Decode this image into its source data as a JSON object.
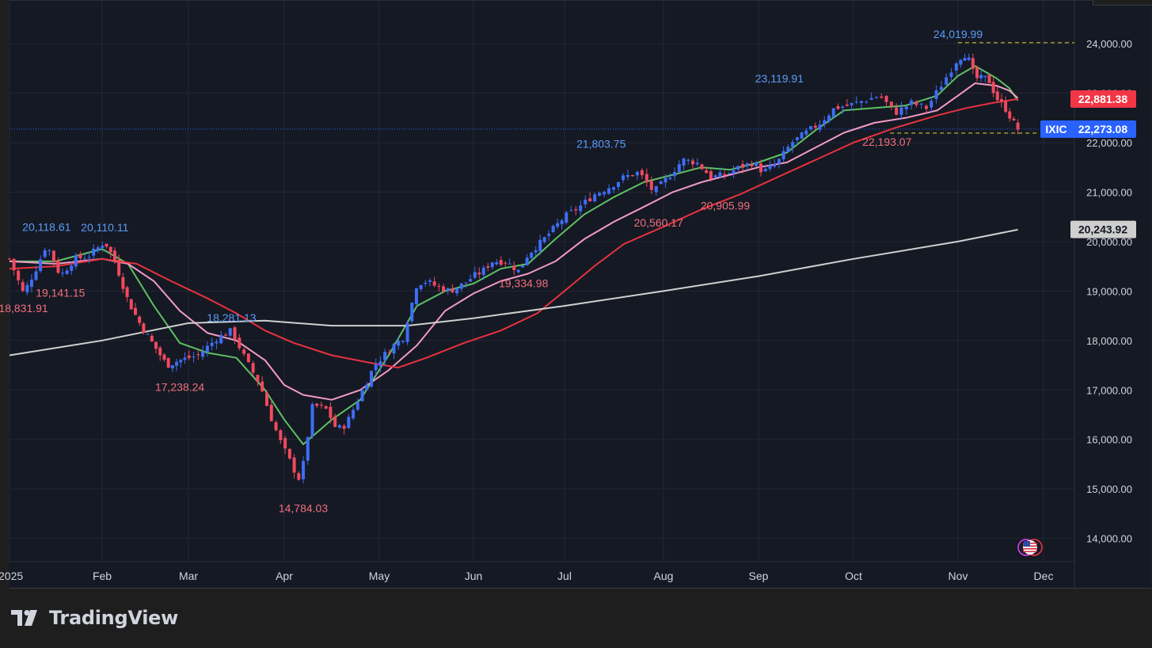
{
  "brand": {
    "name": "TradingView",
    "logo_icon": "tradingview-logo-icon"
  },
  "colors": {
    "background": "#151924",
    "grid": "#232734",
    "up": "#3d6ef5",
    "down": "#f04a5e",
    "text": "#d1d4dc",
    "high_label": "#5b9cf8",
    "low_label": "#f0707c",
    "ma_green": "#5ec063",
    "ma_pink": "#f29bc4",
    "ma_red": "#e8323f",
    "ma_gray": "#cfcfcf"
  },
  "chart_data": {
    "type": "candlestick",
    "symbol": "IXIC",
    "y_axis": {
      "ticks": [
        "14,000.00",
        "15,000.00",
        "16,000.00",
        "17,000.00",
        "18,000.00",
        "19,000.00",
        "20,000.00",
        "21,000.00",
        "22,000.00",
        "23,000.00",
        "24,000.00"
      ],
      "range": [
        13600,
        24600
      ],
      "position": "right"
    },
    "x_axis": {
      "labels": [
        "2025",
        "Feb",
        "Mar",
        "Apr",
        "May",
        "Jun",
        "Jul",
        "Aug",
        "Sep",
        "Oct",
        "Nov",
        "Dec"
      ]
    },
    "price_tags": [
      {
        "text": "22,881.38",
        "value": 22881.38,
        "color": "#f23645"
      },
      {
        "text": "22,273.08",
        "value": 22273.08,
        "color": "#2962ff",
        "symbol": "IXIC"
      },
      {
        "text": "20,243.92",
        "value": 20243.92,
        "color": "#cfcfcf"
      }
    ],
    "annotations": [
      {
        "text": "18,831.91",
        "kind": "low",
        "value": 18831.91,
        "month": 0.15
      },
      {
        "text": "20,118.61",
        "kind": "high",
        "value": 20118.61,
        "month": 0.4
      },
      {
        "text": "19,141.15",
        "kind": "low",
        "value": 19141.15,
        "month": 0.55
      },
      {
        "text": "20,110.11",
        "kind": "high",
        "value": 20110.11,
        "month": 1.03
      },
      {
        "text": "18,281.13",
        "kind": "high",
        "value": 18281.13,
        "month": 2.45
      },
      {
        "text": "17,238.24",
        "kind": "low",
        "value": 17238.24,
        "month": 1.9
      },
      {
        "text": "14,784.03",
        "kind": "low",
        "value": 14784.03,
        "month": 3.2
      },
      {
        "text": "19,334.98",
        "kind": "low",
        "value": 19334.98,
        "month": 5.55
      },
      {
        "text": "21,803.75",
        "kind": "high",
        "value": 21803.75,
        "month": 6.37
      },
      {
        "text": "20,560.17",
        "kind": "low",
        "value": 20560.17,
        "month": 6.95
      },
      {
        "text": "20,905.99",
        "kind": "low",
        "value": 20905.99,
        "month": 7.65
      },
      {
        "text": "23,119.91",
        "kind": "high",
        "value": 23119.91,
        "month": 8.22
      },
      {
        "text": "22,193.07",
        "kind": "low",
        "value": 22193.07,
        "month": 9.32
      },
      {
        "text": "24,019.99",
        "kind": "high",
        "value": 24019.99,
        "month": 10.0
      }
    ],
    "dashed_levels": [
      24019.99,
      22193.07
    ],
    "ohlc_anchors_month_value": [
      [
        0.0,
        19650
      ],
      [
        0.15,
        18950
      ],
      [
        0.3,
        19500
      ],
      [
        0.4,
        19950
      ],
      [
        0.55,
        19300
      ],
      [
        0.7,
        19650
      ],
      [
        0.85,
        19700
      ],
      [
        1.03,
        20000
      ],
      [
        1.15,
        19600
      ],
      [
        1.3,
        18800
      ],
      [
        1.45,
        18300
      ],
      [
        1.6,
        17900
      ],
      [
        1.75,
        17500
      ],
      [
        1.9,
        17600
      ],
      [
        2.1,
        17700
      ],
      [
        2.3,
        18050
      ],
      [
        2.45,
        18200
      ],
      [
        2.6,
        17600
      ],
      [
        2.75,
        17100
      ],
      [
        2.85,
        16500
      ],
      [
        2.95,
        16000
      ],
      [
        3.05,
        15600
      ],
      [
        3.15,
        15200
      ],
      [
        3.2,
        15500
      ],
      [
        3.3,
        16700
      ],
      [
        3.45,
        16600
      ],
      [
        3.55,
        16200
      ],
      [
        3.65,
        16300
      ],
      [
        3.75,
        16700
      ],
      [
        3.85,
        17100
      ],
      [
        3.95,
        17500
      ],
      [
        4.05,
        17700
      ],
      [
        4.15,
        17900
      ],
      [
        4.25,
        18050
      ],
      [
        4.4,
        19150
      ],
      [
        4.5,
        19200
      ],
      [
        4.6,
        19100
      ],
      [
        4.75,
        19000
      ],
      [
        4.9,
        19150
      ],
      [
        5.0,
        19300
      ],
      [
        5.1,
        19400
      ],
      [
        5.2,
        19600
      ],
      [
        5.35,
        19600
      ],
      [
        5.5,
        19400
      ],
      [
        5.6,
        19750
      ],
      [
        5.75,
        20000
      ],
      [
        5.9,
        20300
      ],
      [
        6.0,
        20500
      ],
      [
        6.15,
        20700
      ],
      [
        6.3,
        20950
      ],
      [
        6.45,
        21100
      ],
      [
        6.6,
        21300
      ],
      [
        6.75,
        21400
      ],
      [
        6.9,
        21000
      ],
      [
        7.05,
        21300
      ],
      [
        7.2,
        21650
      ],
      [
        7.35,
        21600
      ],
      [
        7.5,
        21300
      ],
      [
        7.65,
        21350
      ],
      [
        7.8,
        21500
      ],
      [
        7.95,
        21600
      ],
      [
        8.05,
        21400
      ],
      [
        8.2,
        21600
      ],
      [
        8.35,
        22000
      ],
      [
        8.5,
        22200
      ],
      [
        8.65,
        22400
      ],
      [
        8.8,
        22700
      ],
      [
        8.95,
        22750
      ],
      [
        9.1,
        22850
      ],
      [
        9.25,
        22950
      ],
      [
        9.4,
        22600
      ],
      [
        9.55,
        22800
      ],
      [
        9.7,
        22700
      ],
      [
        9.85,
        23200
      ],
      [
        10.0,
        23700
      ],
      [
        10.1,
        23800
      ],
      [
        10.2,
        23300
      ],
      [
        10.35,
        23300
      ],
      [
        10.45,
        22900
      ],
      [
        10.55,
        22700
      ],
      [
        10.65,
        22400
      ],
      [
        10.7,
        22273
      ]
    ],
    "moving_averages": [
      {
        "color": "#5ec063",
        "points": [
          [
            0.0,
            19600
          ],
          [
            0.5,
            19600
          ],
          [
            1.0,
            19850
          ],
          [
            1.3,
            19550
          ],
          [
            1.6,
            18700
          ],
          [
            1.9,
            17950
          ],
          [
            2.2,
            17750
          ],
          [
            2.5,
            17650
          ],
          [
            2.8,
            17000
          ],
          [
            3.0,
            16400
          ],
          [
            3.2,
            15900
          ],
          [
            3.5,
            16400
          ],
          [
            3.8,
            16800
          ],
          [
            4.1,
            17700
          ],
          [
            4.4,
            18700
          ],
          [
            4.7,
            19000
          ],
          [
            5.0,
            19150
          ],
          [
            5.3,
            19450
          ],
          [
            5.6,
            19550
          ],
          [
            5.9,
            20050
          ],
          [
            6.2,
            20550
          ],
          [
            6.5,
            20900
          ],
          [
            6.8,
            21200
          ],
          [
            7.1,
            21350
          ],
          [
            7.4,
            21500
          ],
          [
            7.7,
            21450
          ],
          [
            8.0,
            21600
          ],
          [
            8.3,
            21800
          ],
          [
            8.6,
            22250
          ],
          [
            8.9,
            22650
          ],
          [
            9.2,
            22700
          ],
          [
            9.5,
            22750
          ],
          [
            9.8,
            22950
          ],
          [
            10.0,
            23350
          ],
          [
            10.2,
            23550
          ],
          [
            10.45,
            23300
          ],
          [
            10.6,
            23100
          ],
          [
            10.7,
            22850
          ]
        ]
      },
      {
        "color": "#f29bc4",
        "points": [
          [
            0.0,
            19600
          ],
          [
            0.5,
            19550
          ],
          [
            1.0,
            19650
          ],
          [
            1.3,
            19550
          ],
          [
            1.6,
            19200
          ],
          [
            1.9,
            18600
          ],
          [
            2.2,
            18150
          ],
          [
            2.5,
            18000
          ],
          [
            2.8,
            17600
          ],
          [
            3.0,
            17100
          ],
          [
            3.2,
            16900
          ],
          [
            3.5,
            16800
          ],
          [
            3.8,
            17000
          ],
          [
            4.1,
            17400
          ],
          [
            4.4,
            17900
          ],
          [
            4.7,
            18600
          ],
          [
            5.0,
            18950
          ],
          [
            5.3,
            19200
          ],
          [
            5.6,
            19350
          ],
          [
            5.9,
            19600
          ],
          [
            6.2,
            20050
          ],
          [
            6.5,
            20400
          ],
          [
            6.8,
            20700
          ],
          [
            7.1,
            21000
          ],
          [
            7.4,
            21200
          ],
          [
            7.7,
            21350
          ],
          [
            8.0,
            21500
          ],
          [
            8.3,
            21600
          ],
          [
            8.6,
            21900
          ],
          [
            8.9,
            22200
          ],
          [
            9.2,
            22400
          ],
          [
            9.5,
            22500
          ],
          [
            9.8,
            22650
          ],
          [
            10.0,
            22950
          ],
          [
            10.2,
            23200
          ],
          [
            10.45,
            23150
          ],
          [
            10.6,
            23050
          ],
          [
            10.7,
            22900
          ]
        ]
      },
      {
        "color": "#e8323f",
        "points": [
          [
            0.0,
            19450
          ],
          [
            0.5,
            19500
          ],
          [
            1.0,
            19650
          ],
          [
            1.4,
            19550
          ],
          [
            1.8,
            19200
          ],
          [
            2.2,
            18850
          ],
          [
            2.5,
            18550
          ],
          [
            2.8,
            18200
          ],
          [
            3.1,
            17950
          ],
          [
            3.5,
            17700
          ],
          [
            3.9,
            17550
          ],
          [
            4.2,
            17450
          ],
          [
            4.5,
            17650
          ],
          [
            4.9,
            17950
          ],
          [
            5.3,
            18200
          ],
          [
            5.7,
            18550
          ],
          [
            6.0,
            19000
          ],
          [
            6.3,
            19500
          ],
          [
            6.6,
            19950
          ],
          [
            7.0,
            20300
          ],
          [
            7.4,
            20650
          ],
          [
            7.8,
            20950
          ],
          [
            8.2,
            21300
          ],
          [
            8.6,
            21650
          ],
          [
            9.0,
            22000
          ],
          [
            9.4,
            22300
          ],
          [
            9.8,
            22550
          ],
          [
            10.1,
            22700
          ],
          [
            10.4,
            22800
          ],
          [
            10.7,
            22880
          ]
        ]
      },
      {
        "color": "#cfcfcf",
        "points": [
          [
            0.0,
            17700
          ],
          [
            1.0,
            18000
          ],
          [
            2.0,
            18350
          ],
          [
            2.8,
            18400
          ],
          [
            3.5,
            18300
          ],
          [
            4.3,
            18300
          ],
          [
            5.0,
            18450
          ],
          [
            6.0,
            18700
          ],
          [
            7.0,
            19000
          ],
          [
            8.0,
            19300
          ],
          [
            9.0,
            19650
          ],
          [
            10.0,
            20000
          ],
          [
            10.7,
            20240
          ]
        ]
      }
    ],
    "legend": "none",
    "grid": true
  }
}
